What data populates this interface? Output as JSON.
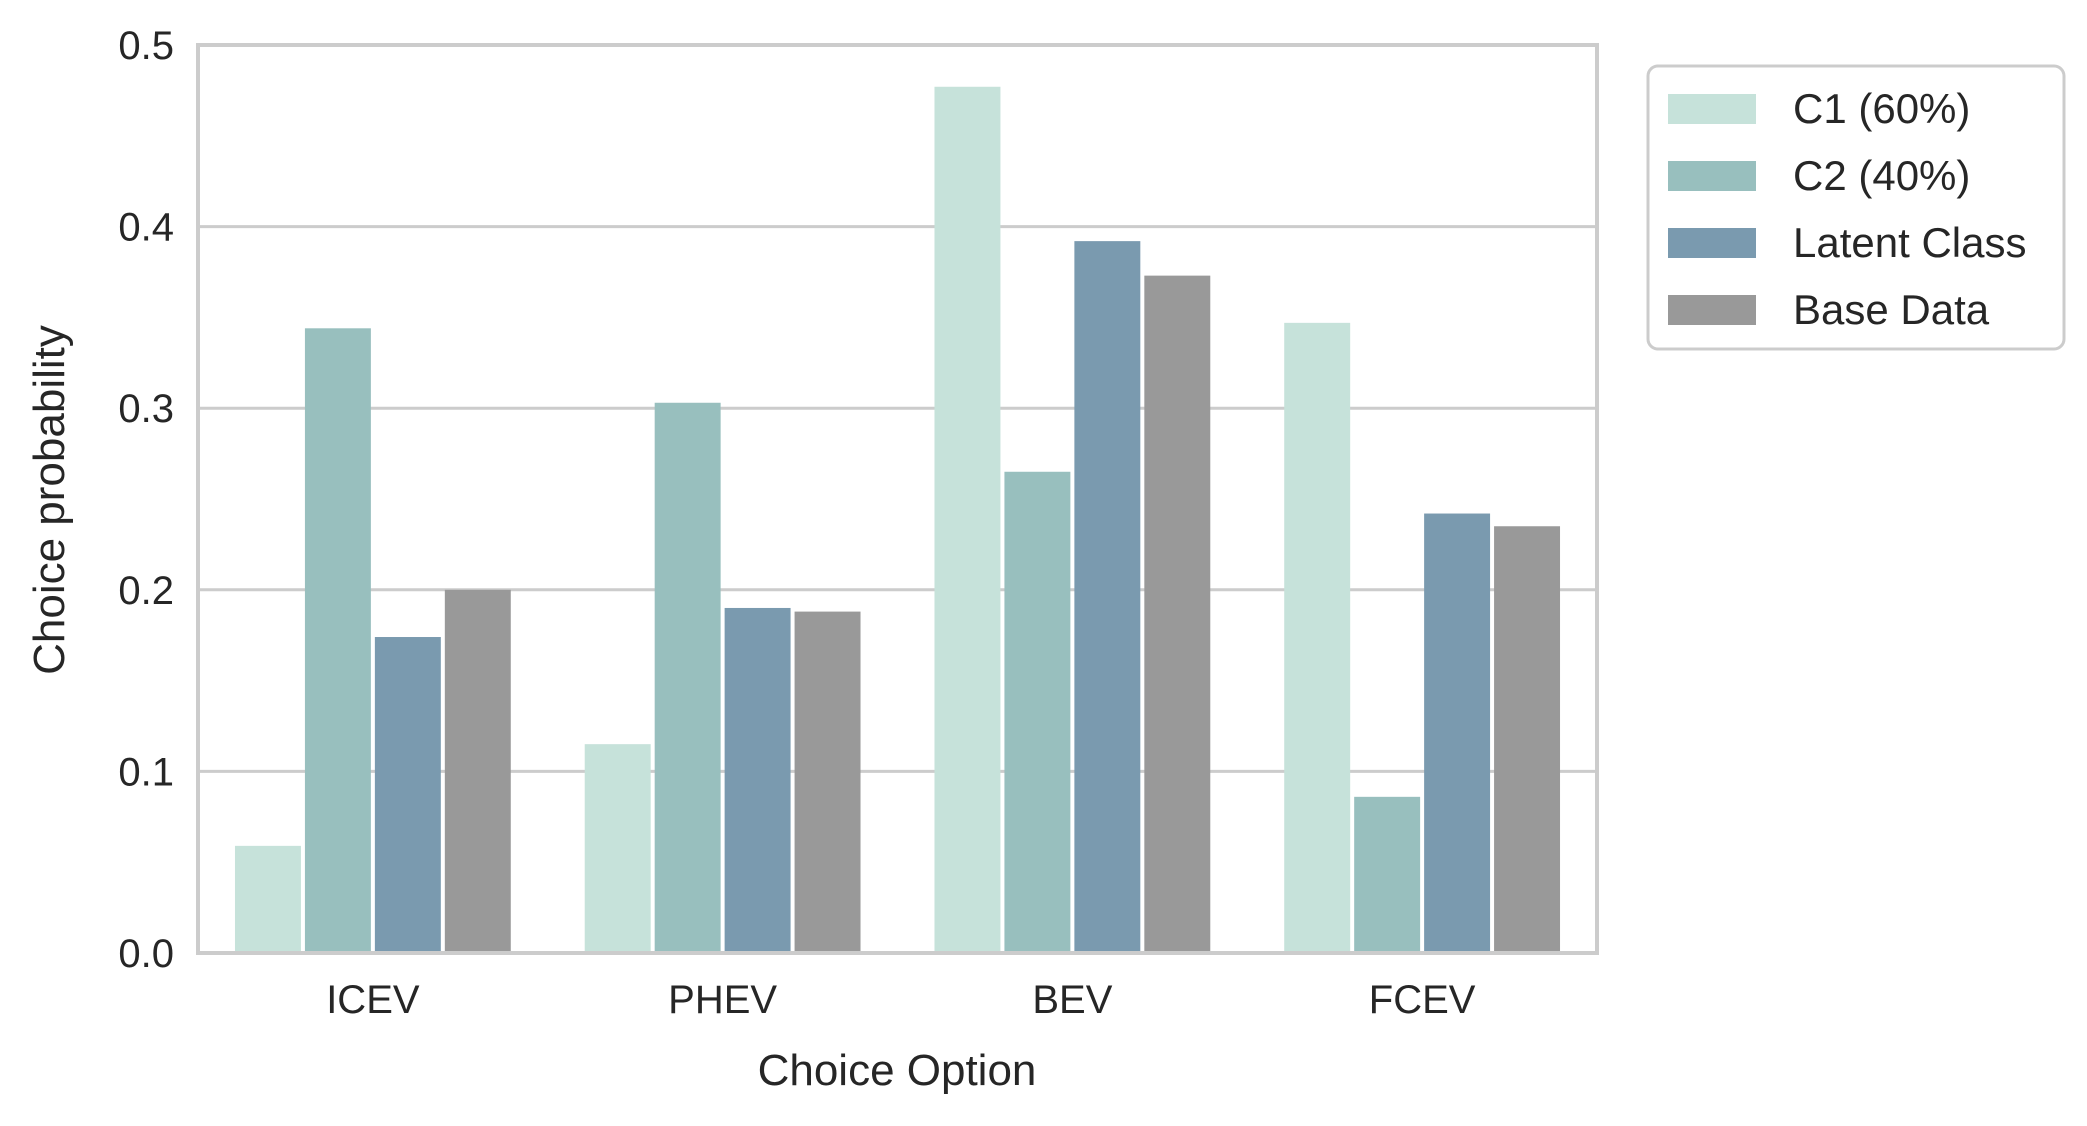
{
  "chart_data": {
    "type": "bar",
    "xlabel": "Choice Option",
    "ylabel": "Choice probability",
    "ylim": [
      0,
      0.5
    ],
    "yticks": [
      "0.0",
      "0.1",
      "0.2",
      "0.3",
      "0.4",
      "0.5"
    ],
    "categories": [
      "ICEV",
      "PHEV",
      "BEV",
      "FCEV"
    ],
    "grid": "horizontal",
    "legend_position": "outside-top-right",
    "series": [
      {
        "name": "C1 (60%)",
        "color": "#c6e2da",
        "values": [
          0.059,
          0.115,
          0.477,
          0.347
        ]
      },
      {
        "name": "C2 (40%)",
        "color": "#98bfbe",
        "values": [
          0.344,
          0.303,
          0.265,
          0.086
        ]
      },
      {
        "name": "Latent Class",
        "color": "#7a9aaf",
        "values": [
          0.174,
          0.19,
          0.392,
          0.242
        ]
      },
      {
        "name": "Base Data",
        "color": "#999999",
        "values": [
          0.2,
          0.188,
          0.373,
          0.235
        ]
      }
    ]
  }
}
